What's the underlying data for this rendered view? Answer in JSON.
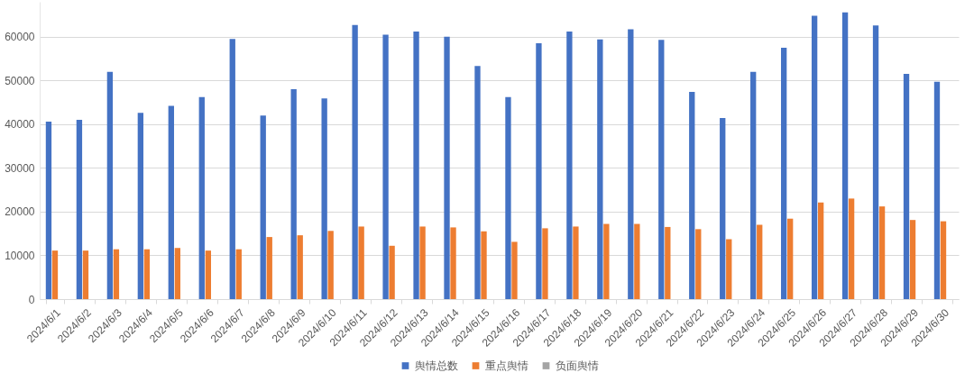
{
  "chart_data": {
    "type": "bar",
    "categories": [
      "2024/6/1",
      "2024/6/2",
      "2024/6/3",
      "2024/6/4",
      "2024/6/5",
      "2024/6/6",
      "2024/6/7",
      "2024/6/8",
      "2024/6/9",
      "2024/6/10",
      "2024/6/11",
      "2024/6/12",
      "2024/6/13",
      "2024/6/14",
      "2024/6/15",
      "2024/6/16",
      "2024/6/17",
      "2024/6/18",
      "2024/6/19",
      "2024/6/20",
      "2024/6/21",
      "2024/6/22",
      "2024/6/23",
      "2024/6/24",
      "2024/6/25",
      "2024/6/26",
      "2024/6/27",
      "2024/6/28",
      "2024/6/29",
      "2024/6/30"
    ],
    "series": [
      {
        "name": "舆情总数",
        "color": "#4472c4",
        "values": [
          40600,
          41000,
          52000,
          42600,
          44200,
          46200,
          59500,
          42000,
          48000,
          45900,
          62700,
          60500,
          61200,
          60000,
          53300,
          46200,
          58500,
          61200,
          59400,
          61700,
          59300,
          47400,
          41400,
          52000,
          57500,
          64800,
          65600,
          62600,
          51500,
          49700
        ]
      },
      {
        "name": "重点舆情",
        "color": "#ed7d31",
        "values": [
          11100,
          11100,
          11400,
          11400,
          11700,
          11100,
          11400,
          14200,
          14600,
          15600,
          16600,
          12200,
          16600,
          16400,
          15500,
          13100,
          16200,
          16600,
          17200,
          17200,
          16500,
          16000,
          13700,
          17000,
          18400,
          22100,
          23000,
          21200,
          18100,
          17800
        ]
      },
      {
        "name": "负面舆情",
        "color": "#a5a5a5",
        "values": [
          null,
          null,
          null,
          null,
          null,
          null,
          null,
          null,
          null,
          null,
          null,
          null,
          null,
          null,
          null,
          null,
          null,
          null,
          null,
          null,
          null,
          null,
          null,
          null,
          null,
          null,
          null,
          null,
          null,
          null
        ]
      }
    ],
    "ylim": [
      0,
      68000
    ],
    "yticks": [
      0,
      10000,
      20000,
      30000,
      40000,
      50000,
      60000
    ],
    "grid": "y",
    "legend": "bottom"
  }
}
